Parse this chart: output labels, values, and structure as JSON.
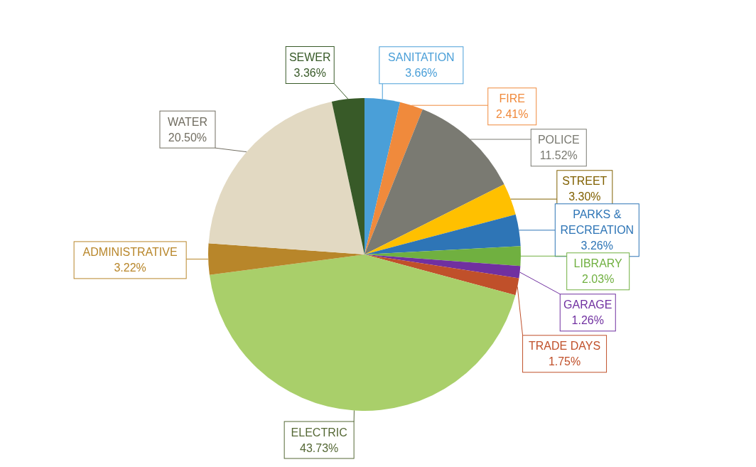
{
  "chart_data": {
    "type": "pie",
    "categories": [
      "SANITATION",
      "FIRE",
      "POLICE",
      "STREET",
      "PARKS & RECREATION",
      "LIBRARY",
      "GARAGE",
      "TRADE DAYS",
      "ELECTRIC",
      "ADMINISTRATIVE",
      "WATER",
      "SEWER"
    ],
    "values": [
      3.66,
      2.41,
      11.52,
      3.3,
      3.26,
      2.03,
      1.26,
      1.75,
      43.73,
      3.22,
      20.5,
      3.36
    ],
    "colors": [
      "#4a9fd8",
      "#f08a3c",
      "#7a7a72",
      "#ffc000",
      "#2e75b6",
      "#70b040",
      "#7030a0",
      "#c0502a",
      "#a9cf6a",
      "#b8862a",
      "#e2d9c2",
      "#385a28"
    ],
    "value_labels": [
      "3.66%",
      "2.41%",
      "11.52%",
      "3.30%",
      "3.26%",
      "2.03%",
      "1.26%",
      "1.75%",
      "43.73%",
      "3.22%",
      "20.50%",
      "3.36%"
    ]
  }
}
